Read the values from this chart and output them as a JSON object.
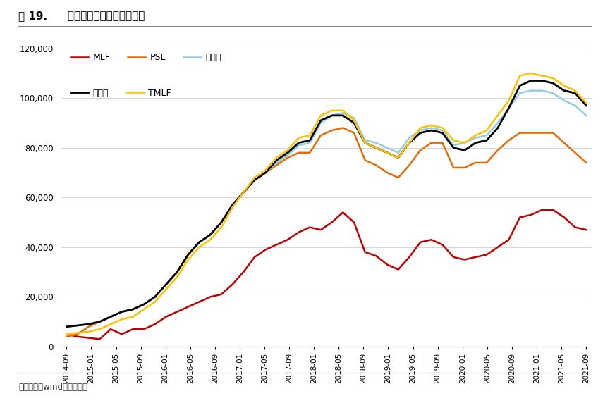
{
  "title_bold": "图 19.",
  "title_regular": " 部分货币政策工具存量规模",
  "source": "资料来源：wind，红塔证券",
  "ylim": [
    0,
    120000
  ],
  "yticks": [
    0,
    20000,
    40000,
    60000,
    80000,
    100000,
    120000
  ],
  "background_color": "#ffffff",
  "series": {
    "MLF": {
      "color": "#c00000",
      "linewidth": 1.8,
      "data": [
        5000,
        4000,
        3500,
        3000,
        7000,
        5000,
        7000,
        7000,
        9000,
        12000,
        14000,
        16000,
        18000,
        20000,
        21000,
        25000,
        30000,
        36000,
        39000,
        41000,
        43000,
        46000,
        48000,
        47000,
        50000,
        54000,
        50000,
        38000,
        36500,
        33000,
        31000,
        36000,
        42000,
        43000,
        41000,
        36000,
        35000,
        36000,
        37000,
        40000,
        43000,
        52000,
        53000,
        55000,
        55000,
        52000,
        48000,
        47000
      ]
    },
    "PSL": {
      "color": "#e36c09",
      "linewidth": 1.8,
      "data": [
        4000,
        5000,
        8000,
        10000,
        12000,
        14000,
        15000,
        17000,
        20000,
        25000,
        30000,
        37000,
        42000,
        45000,
        50000,
        57000,
        62000,
        67000,
        70000,
        73000,
        76000,
        78000,
        78000,
        85000,
        87000,
        88000,
        86000,
        75000,
        73000,
        70000,
        68000,
        73000,
        79000,
        82000,
        82000,
        72000,
        72000,
        74000,
        74000,
        79000,
        83000,
        86000,
        86000,
        86000,
        86000,
        82000,
        78000,
        74000
      ]
    },
    "再贷款": {
      "color": "#92cddc",
      "linewidth": 1.8,
      "data": [
        8000,
        8500,
        9000,
        10000,
        12000,
        14000,
        15000,
        17000,
        20000,
        25000,
        30000,
        37000,
        42000,
        45000,
        50000,
        57000,
        62000,
        67000,
        70000,
        74000,
        77000,
        81000,
        82000,
        90000,
        93000,
        94000,
        92000,
        83000,
        82000,
        80000,
        78000,
        84000,
        87000,
        88000,
        87000,
        81000,
        82000,
        84000,
        85000,
        90000,
        96000,
        102000,
        103000,
        103000,
        102000,
        99000,
        97000,
        93000
      ]
    },
    "再贴现": {
      "color": "#000000",
      "linewidth": 2.0,
      "data": [
        8000,
        8500,
        9000,
        10000,
        12000,
        14000,
        15000,
        17000,
        20000,
        25000,
        30000,
        37000,
        42000,
        45000,
        50000,
        57000,
        62000,
        67000,
        70000,
        75000,
        78000,
        82000,
        83000,
        91000,
        93000,
        93000,
        90000,
        82000,
        80000,
        78000,
        76000,
        82000,
        86000,
        87000,
        86000,
        80000,
        79000,
        82000,
        83000,
        88000,
        96000,
        105000,
        107000,
        107000,
        106000,
        103000,
        102000,
        97000
      ]
    },
    "TMLF": {
      "color": "#ffc000",
      "linewidth": 1.8,
      "data": [
        5000,
        5500,
        6000,
        7000,
        9000,
        11000,
        12000,
        15000,
        18000,
        23000,
        28000,
        35000,
        40000,
        43000,
        48000,
        56000,
        62000,
        68000,
        71000,
        76000,
        79000,
        84000,
        85000,
        93000,
        95000,
        95000,
        91000,
        82000,
        80000,
        78000,
        76000,
        82000,
        88000,
        89000,
        88000,
        83000,
        82000,
        85000,
        87000,
        93000,
        99000,
        109000,
        110000,
        109000,
        108000,
        105000,
        103000,
        98000
      ]
    }
  },
  "xtick_labels": [
    "2014-09",
    "2015-01",
    "2015-05",
    "2015-09",
    "2016-01",
    "2016-05",
    "2016-09",
    "2017-01",
    "2017-05",
    "2017-09",
    "2018-01",
    "2018-05",
    "2018-09",
    "2019-01",
    "2019-05",
    "2019-09",
    "2020-01",
    "2020-05",
    "2020-09",
    "2021-01",
    "2021-05",
    "2021-09"
  ],
  "legend_row1": [
    "MLF",
    "PSL",
    "再贷款"
  ],
  "legend_row2": [
    "再贴现",
    "TMLF"
  ]
}
